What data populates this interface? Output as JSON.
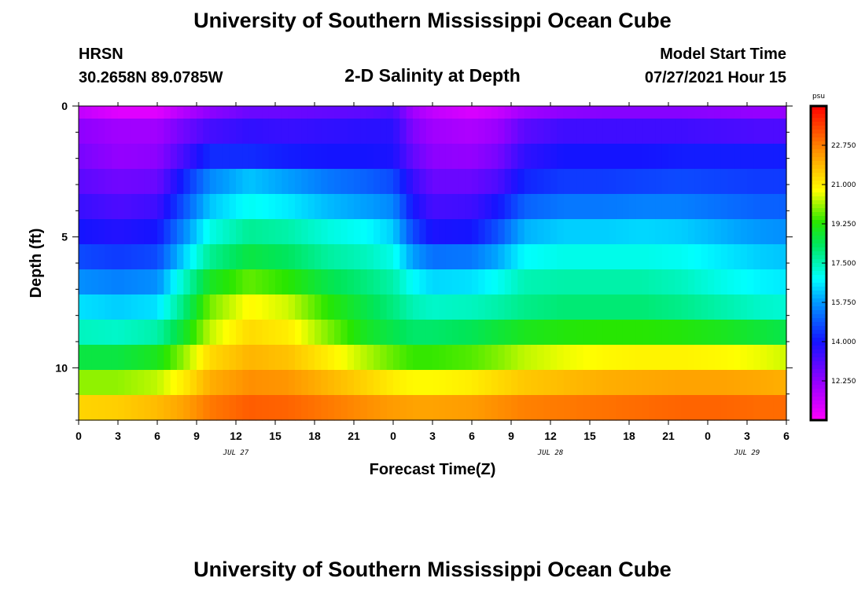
{
  "page": {
    "title_top": "University of Southern Mississippi Ocean Cube",
    "title_bottom": "University of Southern Mississippi Ocean Cube",
    "station_name": "HRSN",
    "station_coords": "30.2658N  89.0785W",
    "model_start_label": "Model Start Time",
    "model_start_value": "07/27/2021 Hour 15"
  },
  "chart_data": {
    "type": "heatmap",
    "title": "2-D Salinity at Depth",
    "xlabel": "Forecast Time(Z)",
    "ylabel": "Depth (ft)",
    "x_ticks": [
      "0",
      "3",
      "6",
      "9",
      "12",
      "15",
      "18",
      "21",
      "0",
      "3",
      "6",
      "9",
      "12",
      "15",
      "18",
      "21",
      "0",
      "3",
      "6"
    ],
    "date_labels": [
      {
        "text": "JUL 27",
        "hour": 12
      },
      {
        "text": "JUL 28",
        "hour": 36
      },
      {
        "text": "JUL 29",
        "hour": 51
      }
    ],
    "x_range_hours": [
      0,
      54
    ],
    "y_range_ft": [
      0,
      12
    ],
    "y_ticks": [
      "0",
      "5",
      "10"
    ],
    "colorbar": {
      "unit": "psu",
      "ticks": [
        "22.750",
        "21.000",
        "19.250",
        "17.500",
        "15.750",
        "14.000",
        "12.250"
      ],
      "min": 10.5,
      "max": 24.5
    },
    "salinity_profiles": {
      "description_hours": [
        0,
        3,
        6,
        8,
        10,
        13,
        16,
        19,
        22,
        24,
        25.5,
        27,
        30,
        32,
        34,
        37,
        40,
        43,
        46,
        49,
        52,
        54
      ],
      "values_by_depth_row": [
        [
          11.5,
          11.0,
          11.0,
          11.7,
          12.3,
          12.8,
          12.8,
          12.9,
          13.0,
          13.2,
          12.0,
          11.5,
          11.1,
          11.4,
          12.0,
          12.3,
          12.4,
          12.4,
          12.4,
          12.3,
          12.2,
          12.2
        ],
        [
          12.3,
          12.0,
          12.0,
          12.7,
          13.3,
          13.6,
          13.5,
          13.6,
          13.7,
          13.7,
          12.5,
          12.0,
          11.8,
          12.1,
          13.0,
          13.4,
          13.4,
          13.4,
          13.4,
          13.3,
          13.2,
          13.2
        ],
        [
          12.6,
          12.2,
          12.3,
          13.3,
          14.3,
          14.3,
          14.1,
          14.0,
          14.0,
          13.9,
          12.9,
          12.3,
          12.2,
          12.6,
          13.6,
          14.0,
          14.0,
          14.0,
          14.1,
          14.1,
          14.1,
          14.1
        ],
        [
          13.0,
          12.7,
          12.8,
          14.2,
          15.5,
          16.2,
          15.8,
          15.3,
          15.0,
          14.7,
          13.5,
          12.8,
          12.8,
          13.2,
          14.2,
          14.5,
          14.5,
          14.6,
          14.7,
          14.6,
          14.5,
          14.5
        ],
        [
          13.5,
          13.2,
          13.4,
          14.8,
          16.2,
          16.9,
          16.6,
          16.1,
          15.8,
          15.5,
          14.0,
          13.3,
          13.4,
          14.0,
          15.0,
          15.3,
          15.3,
          15.4,
          15.4,
          15.2,
          15.0,
          15.0
        ],
        [
          14.0,
          13.8,
          14.0,
          15.5,
          17.0,
          17.8,
          17.6,
          17.1,
          16.8,
          16.3,
          14.7,
          13.9,
          14.0,
          14.8,
          16.0,
          16.3,
          16.3,
          16.4,
          16.3,
          16.0,
          15.7,
          15.6
        ],
        [
          14.7,
          14.5,
          14.7,
          16.3,
          17.8,
          18.6,
          18.3,
          17.7,
          17.4,
          17.0,
          15.8,
          15.2,
          15.3,
          15.9,
          16.8,
          17.0,
          17.0,
          17.0,
          16.9,
          16.6,
          16.3,
          16.2
        ],
        [
          15.6,
          15.4,
          15.6,
          17.3,
          18.9,
          19.7,
          19.3,
          18.5,
          18.0,
          17.6,
          16.8,
          16.4,
          16.5,
          16.9,
          17.5,
          17.6,
          17.6,
          17.6,
          17.4,
          17.0,
          16.7,
          16.6
        ],
        [
          16.5,
          16.3,
          16.5,
          18.0,
          19.8,
          20.8,
          20.4,
          19.3,
          18.5,
          18.0,
          17.5,
          17.3,
          17.4,
          17.6,
          17.9,
          18.1,
          18.1,
          18.1,
          17.9,
          17.6,
          17.3,
          17.2
        ],
        [
          17.4,
          17.3,
          17.6,
          18.8,
          20.3,
          21.3,
          21.0,
          19.9,
          18.9,
          18.5,
          18.2,
          18.2,
          18.4,
          18.7,
          19.0,
          19.2,
          19.3,
          19.3,
          19.2,
          19.0,
          18.7,
          18.5
        ],
        [
          18.6,
          18.6,
          19.0,
          20.0,
          21.3,
          21.9,
          21.7,
          21.0,
          20.2,
          19.7,
          19.4,
          19.4,
          19.6,
          19.9,
          20.3,
          20.6,
          20.8,
          20.9,
          20.9,
          20.8,
          20.6,
          20.4
        ],
        [
          20.0,
          20.0,
          20.3,
          21.0,
          22.0,
          22.5,
          22.4,
          21.9,
          21.4,
          21.0,
          20.8,
          20.8,
          21.0,
          21.3,
          21.6,
          21.8,
          22.0,
          22.1,
          22.2,
          22.2,
          22.1,
          22.0
        ],
        [
          21.4,
          21.5,
          21.8,
          22.2,
          22.8,
          23.2,
          23.1,
          22.8,
          22.5,
          22.3,
          22.2,
          22.2,
          22.3,
          22.5,
          22.7,
          22.8,
          22.9,
          23.0,
          23.1,
          23.1,
          23.0,
          23.0
        ]
      ]
    }
  }
}
